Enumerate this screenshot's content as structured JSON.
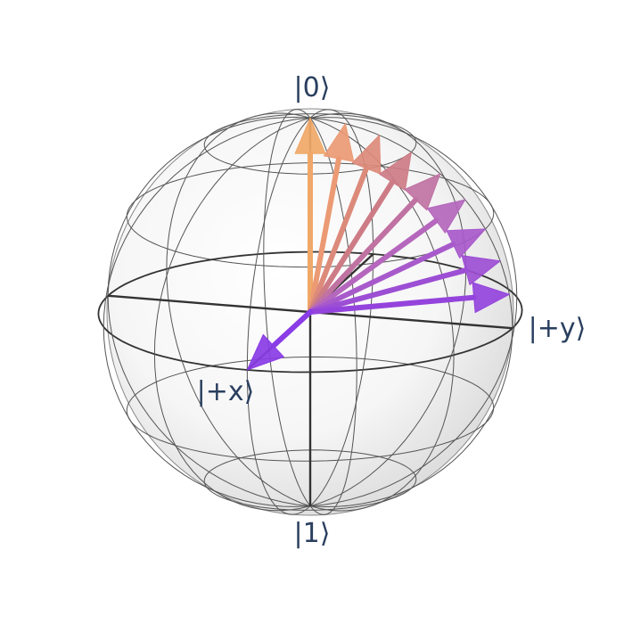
{
  "labels": {
    "top": "|0⟩",
    "bottom": "|1⟩",
    "x_axis": "|+x⟩",
    "y_axis": "|+y⟩"
  },
  "colors": {
    "sphere_fill": "#ececec",
    "wireframe": "#555555",
    "axis": "#333333",
    "label_text": "#2a3f5f"
  },
  "arrows": [
    {
      "theta_deg": 0,
      "phi_deg": 90,
      "color": "#f0a868"
    },
    {
      "theta_deg": 10,
      "phi_deg": 90,
      "color": "#eb9a74"
    },
    {
      "theta_deg": 20,
      "phi_deg": 90,
      "color": "#dc8a7a"
    },
    {
      "theta_deg": 30,
      "phi_deg": 90,
      "color": "#cd7c86"
    },
    {
      "theta_deg": 40,
      "phi_deg": 90,
      "color": "#c072a2"
    },
    {
      "theta_deg": 50,
      "phi_deg": 90,
      "color": "#b467bc"
    },
    {
      "theta_deg": 60,
      "phi_deg": 90,
      "color": "#a85acb"
    },
    {
      "theta_deg": 70,
      "phi_deg": 90,
      "color": "#9c4ed4"
    },
    {
      "theta_deg": 80,
      "phi_deg": 90,
      "color": "#9444dc"
    },
    {
      "theta_deg": 90,
      "phi_deg": 0,
      "color": "#8a3ce6"
    }
  ]
}
